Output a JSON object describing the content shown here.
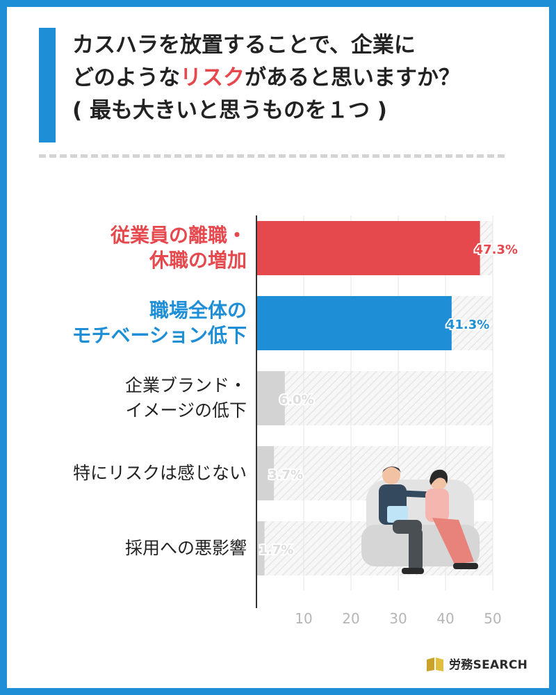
{
  "title": {
    "line1": "カスハラを放置することで、企業に",
    "line2_pre": "どのような",
    "line2_highlight": "リスク",
    "line2_post": "があると思いますか？",
    "line3": "( 最も大きいと思うものを１つ )"
  },
  "colors": {
    "accent_blue": "#1e8fd6",
    "accent_red": "#e5484d",
    "gray_bar": "#d3d3d3"
  },
  "chart_data": {
    "type": "bar",
    "orientation": "horizontal",
    "categories": [
      {
        "lines": [
          "従業員の離職・",
          "休職の増加"
        ],
        "color": "#e5484d",
        "bold": true
      },
      {
        "lines": [
          "職場全体の",
          "モチベーション低下"
        ],
        "color": "#1e8fd6",
        "bold": true
      },
      {
        "lines": [
          "企業ブランド・",
          "イメージの低下"
        ],
        "color": "#222222",
        "bold": false
      },
      {
        "lines": [
          "特にリスクは感じない"
        ],
        "color": "#222222",
        "bold": false
      },
      {
        "lines": [
          "採用への悪影響"
        ],
        "color": "#222222",
        "bold": false
      }
    ],
    "values": [
      47.3,
      41.3,
      6.0,
      3.7,
      1.7
    ],
    "value_labels": [
      "47.3%",
      "41.3%",
      "6.0%",
      "3.7%",
      "1.7%"
    ],
    "bar_colors": [
      "#e5484d",
      "#1e8fd6",
      "#d3d3d3",
      "#d3d3d3",
      "#d3d3d3"
    ],
    "label_colors": [
      "#e5484d",
      "#1e8fd6",
      "#dddddd",
      "#dddddd",
      "#dddddd"
    ],
    "xlim": [
      0,
      50
    ],
    "xticks": [
      10,
      20,
      30,
      40,
      50
    ]
  },
  "logo": {
    "text": "労務SEARCH"
  }
}
